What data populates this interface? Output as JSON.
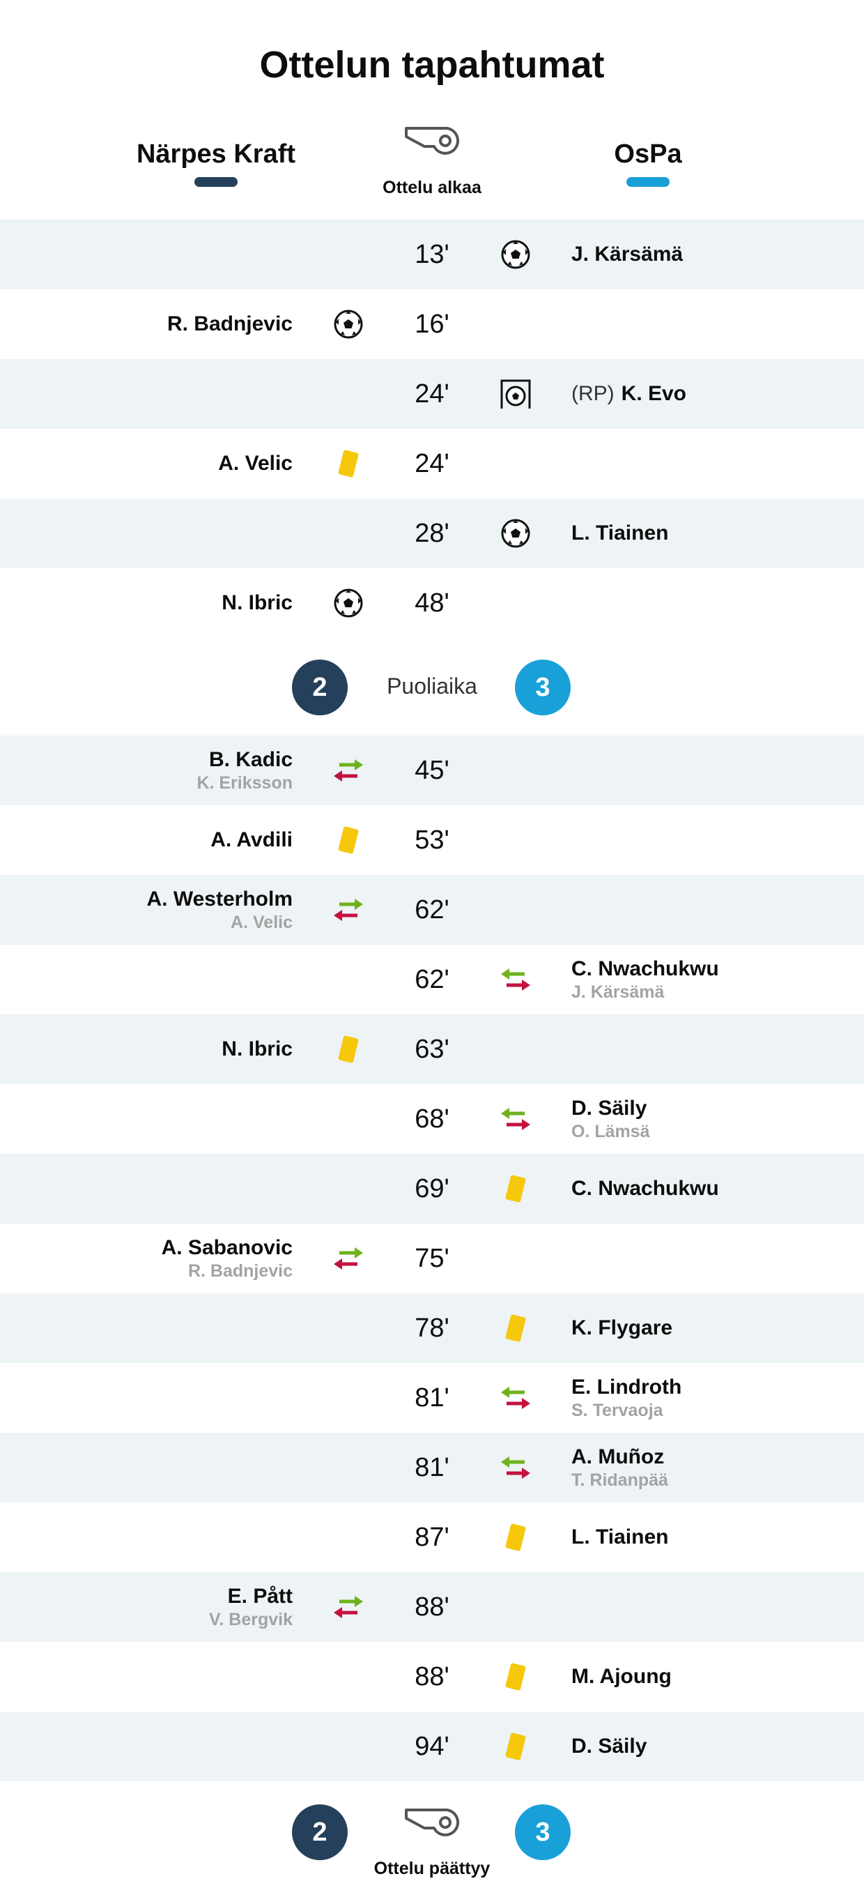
{
  "page_title": "Ottelun tapahtumat",
  "teams": {
    "home": {
      "name": "Närpes Kraft",
      "color": "#25405a"
    },
    "away": {
      "name": "OsPa",
      "color": "#1aa0d8"
    }
  },
  "kickoff_label": "Ottelu alkaa",
  "halftime": {
    "label": "Puoliaika",
    "home_score": "2",
    "away_score": "3"
  },
  "fulltime": {
    "label": "Ottelu päättyy",
    "home_score": "2",
    "away_score": "3"
  },
  "icons": {
    "goal": "soccer-ball-icon",
    "penalty_goal": "penalty-goal-icon",
    "yellow_card": "yellow-card-icon",
    "substitution": "substitution-arrows-icon",
    "whistle": "whistle-icon"
  },
  "events_first_half": [
    {
      "minute": "13'",
      "side": "away",
      "type": "goal",
      "player": "J. Kärsämä"
    },
    {
      "minute": "16'",
      "side": "home",
      "type": "goal",
      "player": "R. Badnjevic"
    },
    {
      "minute": "24'",
      "side": "away",
      "type": "penalty_goal",
      "prefix": "(RP)",
      "player": "K. Evo"
    },
    {
      "minute": "24'",
      "side": "home",
      "type": "yellow_card",
      "player": "A. Velic"
    },
    {
      "minute": "28'",
      "side": "away",
      "type": "goal",
      "player": "L. Tiainen"
    },
    {
      "minute": "48'",
      "side": "home",
      "type": "goal",
      "player": "N. Ibric"
    }
  ],
  "events_second_half": [
    {
      "minute": "45'",
      "side": "home",
      "type": "substitution",
      "player": "B. Kadic",
      "player_out": "K. Eriksson"
    },
    {
      "minute": "53'",
      "side": "home",
      "type": "yellow_card",
      "player": "A. Avdili"
    },
    {
      "minute": "62'",
      "side": "home",
      "type": "substitution",
      "player": "A. Westerholm",
      "player_out": "A. Velic"
    },
    {
      "minute": "62'",
      "side": "away",
      "type": "substitution",
      "player": "C. Nwachukwu",
      "player_out": "J. Kärsämä"
    },
    {
      "minute": "63'",
      "side": "home",
      "type": "yellow_card",
      "player": "N. Ibric"
    },
    {
      "minute": "68'",
      "side": "away",
      "type": "substitution",
      "player": "D. Säily",
      "player_out": "O. Lämsä"
    },
    {
      "minute": "69'",
      "side": "away",
      "type": "yellow_card",
      "player": "C. Nwachukwu"
    },
    {
      "minute": "75'",
      "side": "home",
      "type": "substitution",
      "player": "A. Sabanovic",
      "player_out": "R. Badnjevic"
    },
    {
      "minute": "78'",
      "side": "away",
      "type": "yellow_card",
      "player": "K. Flygare"
    },
    {
      "minute": "81'",
      "side": "away",
      "type": "substitution",
      "player": "E. Lindroth",
      "player_out": "S. Tervaoja"
    },
    {
      "minute": "81'",
      "side": "away",
      "type": "substitution",
      "player": "A. Muñoz",
      "player_out": "T. Ridanpää"
    },
    {
      "minute": "87'",
      "side": "away",
      "type": "yellow_card",
      "player": "L. Tiainen"
    },
    {
      "minute": "88'",
      "side": "home",
      "type": "substitution",
      "player": "E. Pått",
      "player_out": "V. Bergvik"
    },
    {
      "minute": "88'",
      "side": "away",
      "type": "yellow_card",
      "player": "M. Ajoung"
    },
    {
      "minute": "94'",
      "side": "away",
      "type": "yellow_card",
      "player": "D. Säily"
    }
  ]
}
